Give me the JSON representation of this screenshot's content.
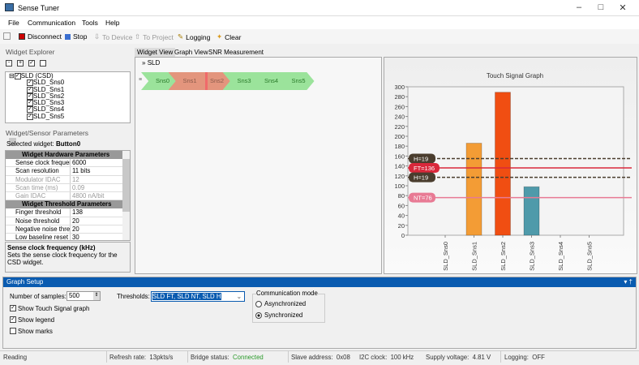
{
  "window": {
    "title": "Sense Tuner"
  },
  "menu": [
    "File",
    "Communication",
    "Tools",
    "Help"
  ],
  "toolbar": {
    "disconnect": "Disconnect",
    "stop": "Stop",
    "to_device": "To Device",
    "to_project": "To Project",
    "logging": "Logging",
    "clear": "Clear"
  },
  "explorer": {
    "title": "Widget Explorer",
    "root": "SLD (CSD)",
    "items": [
      "SLD_Sns0",
      "SLD_Sns1",
      "SLD_Sns2",
      "SLD_Sns3",
      "SLD_Sns4",
      "SLD_Sns5"
    ]
  },
  "params": {
    "title": "Widget/Sensor Parameters",
    "selected_label": "Selected widget:",
    "selected_value": "Button0",
    "hw_header": "Widget Hardware Parameters",
    "hw": [
      {
        "k": "Sense clock frequency (kHz)",
        "v": "6000"
      },
      {
        "k": "Scan resolution",
        "v": "11 bits"
      },
      {
        "k": "Modulator IDAC",
        "v": "12",
        "dis": true
      },
      {
        "k": "Scan time (ms)",
        "v": "0.09",
        "dis": true
      },
      {
        "k": "Gain IDAC",
        "v": "4800 nA/bit",
        "dis": true
      }
    ],
    "th_header": "Widget Threshold Parameters",
    "th": [
      {
        "k": "Finger threshold",
        "v": "138"
      },
      {
        "k": "Noise threshold",
        "v": "20"
      },
      {
        "k": "Negative noise threshold",
        "v": "20"
      },
      {
        "k": "Low baseline reset",
        "v": "30"
      }
    ],
    "desc_title": "Sense clock frequency (kHz)",
    "desc_text": "Sets the sense clock frequency for the CSD widget."
  },
  "tabs": [
    "Widget View",
    "Graph View",
    "SNR Measurement"
  ],
  "widget_view": {
    "group": "SLD",
    "sensors": [
      {
        "name": "Sns0",
        "color": "#9be39b"
      },
      {
        "name": "Sns1",
        "color": "#e3957d"
      },
      {
        "name": "Sns2",
        "color": "#e3957d"
      },
      {
        "name": "Sns3",
        "color": "#9be39b"
      },
      {
        "name": "Sns4",
        "color": "#9be39b"
      },
      {
        "name": "Sns5",
        "color": "#9be39b"
      }
    ]
  },
  "chart_data": {
    "type": "bar",
    "title": "Touch Signal Graph",
    "categories": [
      "SLD_Sns0",
      "SLD_Sns1",
      "SLD_Sns2",
      "SLD_Sns3",
      "SLD_Sns4",
      "SLD_Sns5"
    ],
    "values": [
      0,
      186,
      289,
      98,
      0,
      0
    ],
    "colors": [
      "#f39c35",
      "#f39c35",
      "#f04e12",
      "#4f9aaa",
      "#4f9aaa",
      "#4f9aaa"
    ],
    "ylim": [
      0,
      300
    ],
    "yticks": [
      0,
      20,
      40,
      60,
      80,
      100,
      120,
      140,
      160,
      180,
      200,
      220,
      240,
      260,
      280,
      300
    ],
    "thresholds": [
      {
        "label": "H=19",
        "value": 155,
        "style": "dashed",
        "color": "#4a3d2e"
      },
      {
        "label": "FT=136",
        "value": 136,
        "style": "solid",
        "color": "#d9283b"
      },
      {
        "label": "H=19",
        "value": 117,
        "style": "dashed",
        "color": "#4a3d2e"
      },
      {
        "label": "NT=76",
        "value": 76,
        "style": "solid",
        "color": "#e87a94"
      }
    ]
  },
  "graph_setup": {
    "title": "Graph Setup",
    "samples_label": "Number of samples:",
    "samples_value": "500",
    "thresholds_label": "Thresholds:",
    "thresholds_value": "SLD FT, SLD NT, SLD H",
    "show_touch": "Show Touch Signal graph",
    "show_legend": "Show legend",
    "show_marks": "Show marks",
    "comm_mode": "Communication mode",
    "async": "Asynchronized",
    "sync": "Synchronized"
  },
  "status": {
    "reading": "Reading",
    "refresh_label": "Refresh rate:",
    "refresh": "13pkts/s",
    "bridge_label": "Bridge status:",
    "bridge": "Connected",
    "slave_label": "Slave address:",
    "slave": "0x08",
    "i2c_label": "I2C clock:",
    "i2c": "100 kHz",
    "supply_label": "Supply voltage:",
    "supply": "4.81 V",
    "logging_label": "Logging:",
    "logging": "OFF"
  }
}
